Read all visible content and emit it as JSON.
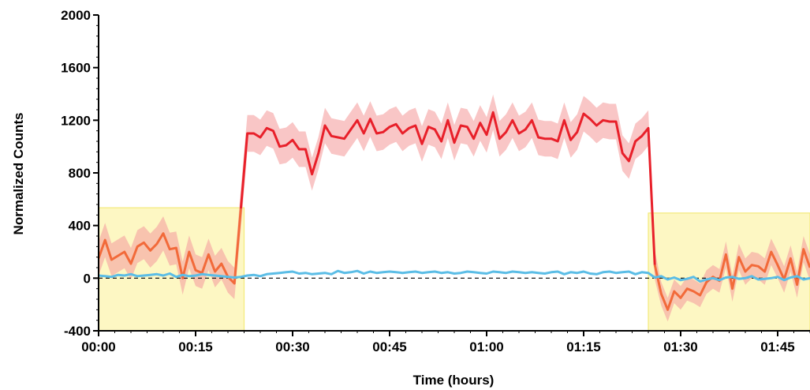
{
  "chart_data": {
    "type": "line",
    "title": "",
    "xlabel": "Time (hours)",
    "ylabel": "Normalized Counts",
    "xlim": [
      0,
      110
    ],
    "ylim": [
      -400,
      2000
    ],
    "grid": false,
    "x_ticks": [
      {
        "value": 0,
        "label": "00:00"
      },
      {
        "value": 15,
        "label": "00:15"
      },
      {
        "value": 30,
        "label": "00:30"
      },
      {
        "value": 45,
        "label": "00:45"
      },
      {
        "value": 60,
        "label": "01:00"
      },
      {
        "value": 75,
        "label": "01:15"
      },
      {
        "value": 90,
        "label": "01:30"
      },
      {
        "value": 105,
        "label": "01:45"
      }
    ],
    "y_ticks": [
      {
        "value": -400,
        "label": "-400"
      },
      {
        "value": 0,
        "label": "0"
      },
      {
        "value": 400,
        "label": "400"
      },
      {
        "value": 800,
        "label": "800"
      },
      {
        "value": 1200,
        "label": "1200"
      },
      {
        "value": 1600,
        "label": "1600"
      },
      {
        "value": 2000,
        "label": "2000"
      }
    ],
    "zero_reference_line": {
      "y": 0,
      "style": "dashed",
      "color": "#000000"
    },
    "shaded_regions": [
      {
        "x_start": 0,
        "x_end": 22.5,
        "y_top": 535,
        "color": "#fdf7c3"
      },
      {
        "x_start": 85,
        "x_end": 110,
        "y_top": 495,
        "color": "#fdf7c3"
      }
    ],
    "series": [
      {
        "color": "#e8202a",
        "segment_colors": {
          "baseline": "#f26a3a",
          "stimulus": "#e8202a"
        },
        "band_color": "#f5a0a0",
        "x": [
          0,
          1,
          2,
          3,
          4,
          5,
          6,
          7,
          8,
          9,
          10,
          11,
          12,
          13,
          14,
          15,
          16,
          17,
          18,
          19,
          20,
          21,
          22,
          23,
          24,
          25,
          26,
          27,
          28,
          29,
          30,
          31,
          32,
          33,
          34,
          35,
          36,
          37,
          38,
          39,
          40,
          41,
          42,
          43,
          44,
          45,
          46,
          47,
          48,
          49,
          50,
          51,
          52,
          53,
          54,
          55,
          56,
          57,
          58,
          59,
          60,
          61,
          62,
          63,
          64,
          65,
          66,
          67,
          68,
          69,
          70,
          71,
          72,
          73,
          74,
          75,
          76,
          77,
          78,
          79,
          80,
          81,
          82,
          83,
          84,
          85,
          86,
          87,
          88,
          89,
          90,
          91,
          92,
          93,
          94,
          95,
          96,
          97,
          98,
          99,
          100,
          101,
          102,
          103,
          104,
          105,
          106,
          107,
          108,
          109,
          110
        ],
        "values": [
          150,
          290,
          140,
          170,
          200,
          110,
          240,
          270,
          210,
          260,
          340,
          220,
          230,
          0,
          200,
          60,
          40,
          180,
          50,
          110,
          10,
          -40,
          530,
          1100,
          1100,
          1070,
          1140,
          1120,
          1000,
          1010,
          1050,
          980,
          980,
          790,
          950,
          1160,
          1080,
          1070,
          1060,
          1130,
          1200,
          1100,
          1210,
          1100,
          1110,
          1150,
          1170,
          1100,
          1140,
          1160,
          1020,
          1150,
          1130,
          1040,
          1200,
          1030,
          1160,
          1150,
          1060,
          1180,
          1090,
          1260,
          1060,
          1110,
          1200,
          1100,
          1130,
          1200,
          1070,
          1060,
          1060,
          1040,
          1200,
          1050,
          1110,
          1250,
          1210,
          1160,
          1200,
          1190,
          1190,
          950,
          890,
          1040,
          1080,
          1140,
          100,
          -120,
          -240,
          -100,
          -150,
          -80,
          -100,
          -130,
          -30,
          10,
          -20,
          180,
          -80,
          160,
          50,
          100,
          90,
          50,
          200,
          100,
          -10,
          150,
          -50,
          220,
          80
        ],
        "error": [
          130,
          130,
          125,
          125,
          125,
          120,
          125,
          125,
          130,
          130,
          130,
          125,
          125,
          125,
          125,
          120,
          120,
          120,
          120,
          120,
          120,
          120,
          150,
          140,
          140,
          135,
          135,
          135,
          135,
          135,
          135,
          135,
          135,
          125,
          125,
          135,
          135,
          135,
          135,
          135,
          135,
          135,
          135,
          135,
          135,
          135,
          135,
          135,
          135,
          135,
          135,
          135,
          135,
          135,
          135,
          135,
          135,
          135,
          135,
          135,
          135,
          135,
          135,
          135,
          135,
          135,
          135,
          135,
          135,
          135,
          135,
          135,
          135,
          135,
          135,
          135,
          135,
          135,
          135,
          135,
          135,
          135,
          135,
          135,
          135,
          135,
          110,
          90,
          90,
          90,
          90,
          90,
          90,
          90,
          90,
          90,
          90,
          100,
          100,
          100,
          100,
          100,
          100,
          100,
          100,
          100,
          100,
          100,
          100,
          100,
          100
        ]
      },
      {
        "color": "#5bbde6",
        "x": [
          0,
          1,
          2,
          3,
          4,
          5,
          6,
          7,
          8,
          9,
          10,
          11,
          12,
          13,
          14,
          15,
          16,
          17,
          18,
          19,
          20,
          21,
          22,
          23,
          24,
          25,
          26,
          27,
          28,
          29,
          30,
          31,
          32,
          33,
          34,
          35,
          36,
          37,
          38,
          39,
          40,
          41,
          42,
          43,
          44,
          45,
          46,
          47,
          48,
          49,
          50,
          51,
          52,
          53,
          54,
          55,
          56,
          57,
          58,
          59,
          60,
          61,
          62,
          63,
          64,
          65,
          66,
          67,
          68,
          69,
          70,
          71,
          72,
          73,
          74,
          75,
          76,
          77,
          78,
          79,
          80,
          81,
          82,
          83,
          84,
          85,
          86,
          87,
          88,
          89,
          90,
          91,
          92,
          93,
          94,
          95,
          96,
          97,
          98,
          99,
          100,
          101,
          102,
          103,
          104,
          105,
          106,
          107,
          108,
          109,
          110
        ],
        "values": [
          20,
          15,
          10,
          25,
          20,
          30,
          15,
          20,
          25,
          30,
          20,
          35,
          10,
          25,
          15,
          20,
          30,
          25,
          20,
          15,
          10,
          5,
          10,
          20,
          25,
          15,
          30,
          35,
          40,
          45,
          50,
          35,
          40,
          30,
          35,
          40,
          30,
          55,
          40,
          45,
          55,
          35,
          50,
          40,
          45,
          50,
          45,
          40,
          45,
          50,
          40,
          45,
          50,
          40,
          45,
          35,
          40,
          50,
          45,
          40,
          35,
          50,
          45,
          40,
          50,
          45,
          40,
          45,
          40,
          35,
          45,
          50,
          30,
          45,
          40,
          50,
          35,
          30,
          45,
          50,
          40,
          45,
          50,
          30,
          45,
          40,
          5,
          15,
          -10,
          5,
          -15,
          -5,
          10,
          -25,
          -10,
          0,
          -15,
          5,
          10,
          -5,
          0,
          15,
          -10,
          -5,
          0,
          10,
          -15,
          5,
          15,
          -10,
          0
        ]
      }
    ]
  }
}
